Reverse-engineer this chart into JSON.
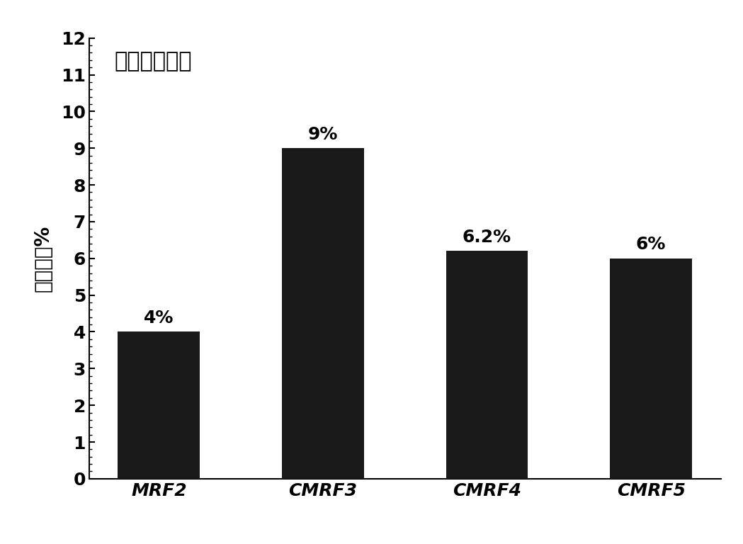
{
  "categories": [
    "MRF2",
    "CMRF3",
    "CMRF4",
    "CMRF5"
  ],
  "values": [
    4.0,
    9.0,
    6.2,
    6.0
  ],
  "labels": [
    "4%",
    "9%",
    "6.2%",
    "6%"
  ],
  "bar_color": "#1a1a1a",
  "title": "静置三个月后",
  "ylabel": "沉降率，%",
  "ylim": [
    0,
    12
  ],
  "yticks": [
    0,
    1,
    2,
    3,
    4,
    5,
    6,
    7,
    8,
    9,
    10,
    11,
    12
  ],
  "background_color": "#ffffff",
  "title_fontsize": 22,
  "ylabel_fontsize": 20,
  "tick_fontsize": 18,
  "label_fontsize": 18,
  "xtick_fontsize": 18,
  "bar_width": 0.5
}
